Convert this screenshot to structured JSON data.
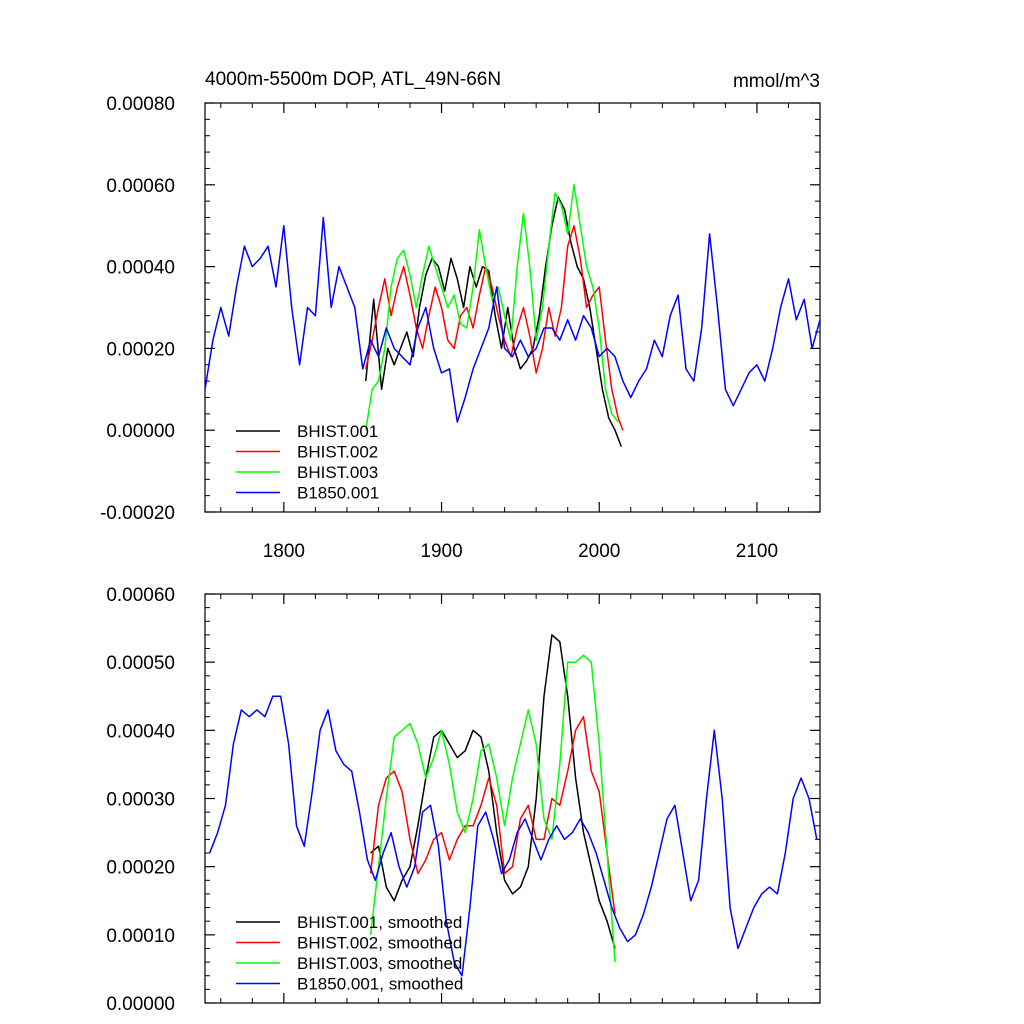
{
  "chart_data": [
    {
      "type": "line",
      "title": "4000m-5500m DOP, ATL_49N-66N",
      "units": "mmol/m^3",
      "xlim": [
        1750,
        2140
      ],
      "ylim": [
        -0.0002,
        0.0008
      ],
      "xticks": [
        1800,
        1900,
        2000,
        2100
      ],
      "xtick_labels": [
        "1800",
        "1900",
        "2000",
        "2100"
      ],
      "yticks": [
        -0.0002,
        0.0,
        0.0002,
        0.0004,
        0.0006,
        0.0008
      ],
      "ytick_labels": [
        "-0.00020",
        "0.00000",
        "0.00020",
        "0.00040",
        "0.00060",
        "0.00080"
      ],
      "legend_position": "bottom-left",
      "series": [
        {
          "name": "BHIST.001",
          "color": "#000000",
          "x": [
            1852,
            1857,
            1862,
            1866,
            1870,
            1874,
            1878,
            1882,
            1886,
            1890,
            1894,
            1898,
            1902,
            1906,
            1910,
            1914,
            1918,
            1922,
            1926,
            1930,
            1934,
            1938,
            1942,
            1946,
            1950,
            1954,
            1958,
            1962,
            1966,
            1970,
            1974,
            1978,
            1982,
            1986,
            1990,
            1994,
            1998,
            2002,
            2006,
            2010,
            2014
          ],
          "y": [
            0.00012,
            0.00032,
            0.0001,
            0.0002,
            0.00016,
            0.0002,
            0.00024,
            0.00018,
            0.0003,
            0.00038,
            0.00042,
            0.0004,
            0.00034,
            0.00042,
            0.00037,
            0.0003,
            0.0004,
            0.00035,
            0.0004,
            0.00039,
            0.00028,
            0.0002,
            0.0003,
            0.0002,
            0.00015,
            0.00017,
            0.0002,
            0.00028,
            0.0004,
            0.0005,
            0.00057,
            0.00054,
            0.00046,
            0.0004,
            0.00037,
            0.0003,
            0.0002,
            0.0001,
            3e-05,
            0.0,
            -4e-05
          ]
        },
        {
          "name": "BHIST.002",
          "color": "#ff0000",
          "x": [
            1852,
            1856,
            1860,
            1864,
            1868,
            1872,
            1876,
            1880,
            1884,
            1888,
            1892,
            1896,
            1900,
            1904,
            1908,
            1912,
            1916,
            1920,
            1924,
            1928,
            1932,
            1936,
            1940,
            1944,
            1948,
            1952,
            1956,
            1960,
            1964,
            1968,
            1972,
            1976,
            1980,
            1984,
            1988,
            1992,
            1996,
            2000,
            2004,
            2008,
            2012,
            2015
          ],
          "y": [
            0.00015,
            0.00022,
            0.0003,
            0.00037,
            0.00028,
            0.00035,
            0.0004,
            0.00033,
            0.00025,
            0.0002,
            0.00028,
            0.00035,
            0.0003,
            0.00022,
            0.0002,
            0.00028,
            0.0003,
            0.00025,
            0.00033,
            0.0004,
            0.00035,
            0.00028,
            0.00022,
            0.00018,
            0.00025,
            0.0003,
            0.00023,
            0.00014,
            0.0002,
            0.0003,
            0.00023,
            0.0003,
            0.00045,
            0.0005,
            0.00042,
            0.0003,
            0.00033,
            0.00035,
            0.00022,
            0.0001,
            3e-05,
            0.0
          ]
        },
        {
          "name": "BHIST.003",
          "color": "#00ff00",
          "x": [
            1852,
            1856,
            1860,
            1864,
            1868,
            1872,
            1876,
            1880,
            1884,
            1888,
            1892,
            1896,
            1900,
            1904,
            1908,
            1912,
            1916,
            1920,
            1924,
            1928,
            1932,
            1936,
            1940,
            1944,
            1948,
            1952,
            1956,
            1960,
            1964,
            1968,
            1972,
            1976,
            1980,
            1984,
            1988,
            1992,
            1996,
            2000,
            2004,
            2008,
            2012
          ],
          "y": [
            0.0,
            0.0001,
            0.00012,
            0.0002,
            0.00035,
            0.00042,
            0.00044,
            0.00038,
            0.0003,
            0.00038,
            0.00045,
            0.0004,
            0.00035,
            0.0003,
            0.00033,
            0.00026,
            0.00025,
            0.00035,
            0.00049,
            0.0004,
            0.00032,
            0.00035,
            0.00028,
            0.00022,
            0.0004,
            0.00053,
            0.0004,
            0.00022,
            0.0003,
            0.00045,
            0.00058,
            0.00055,
            0.00048,
            0.0006,
            0.0005,
            0.0004,
            0.00035,
            0.00025,
            0.0001,
            4e-05,
            2e-05
          ]
        },
        {
          "name": "B1850.001",
          "color": "#0000ff",
          "x": [
            1750,
            1755,
            1760,
            1765,
            1770,
            1775,
            1780,
            1785,
            1790,
            1795,
            1800,
            1805,
            1810,
            1815,
            1820,
            1825,
            1830,
            1835,
            1840,
            1845,
            1850,
            1855,
            1860,
            1865,
            1870,
            1875,
            1880,
            1885,
            1890,
            1895,
            1900,
            1905,
            1910,
            1915,
            1920,
            1925,
            1930,
            1935,
            1940,
            1945,
            1950,
            1955,
            1960,
            1965,
            1970,
            1975,
            1980,
            1985,
            1990,
            1995,
            2000,
            2005,
            2010,
            2015,
            2020,
            2025,
            2030,
            2035,
            2040,
            2045,
            2050,
            2055,
            2060,
            2065,
            2070,
            2075,
            2080,
            2085,
            2090,
            2095,
            2100,
            2105,
            2110,
            2115,
            2120,
            2125,
            2130,
            2135,
            2140
          ],
          "y": [
            0.0001,
            0.00022,
            0.0003,
            0.00023,
            0.00035,
            0.00045,
            0.0004,
            0.00042,
            0.00045,
            0.00035,
            0.0005,
            0.0003,
            0.00016,
            0.0003,
            0.00028,
            0.00052,
            0.0003,
            0.0004,
            0.00035,
            0.0003,
            0.00015,
            0.00022,
            0.00018,
            0.00025,
            0.0002,
            0.00018,
            0.00016,
            0.00025,
            0.0003,
            0.0002,
            0.00014,
            0.00015,
            2e-05,
            8e-05,
            0.00015,
            0.0002,
            0.00025,
            0.00035,
            0.0002,
            0.00018,
            0.00022,
            0.00018,
            0.0002,
            0.00025,
            0.00025,
            0.00022,
            0.00027,
            0.00022,
            0.00028,
            0.00025,
            0.00018,
            0.0002,
            0.00018,
            0.00012,
            8e-05,
            0.00012,
            0.00015,
            0.00022,
            0.00018,
            0.00028,
            0.00033,
            0.00015,
            0.00012,
            0.00025,
            0.00048,
            0.0003,
            0.0001,
            6e-05,
            0.0001,
            0.00014,
            0.00016,
            0.00012,
            0.0002,
            0.0003,
            0.00037,
            0.00027,
            0.00032,
            0.0002,
            0.00027
          ]
        }
      ]
    },
    {
      "type": "line",
      "xlim": [
        1750,
        2140
      ],
      "ylim": [
        0.0,
        0.0006
      ],
      "xticks": [
        1800,
        1900,
        2000,
        2100
      ],
      "yticks": [
        0.0,
        0.0001,
        0.0002,
        0.0003,
        0.0004,
        0.0005,
        0.0006
      ],
      "ytick_labels": [
        "0.00000",
        "0.00010",
        "0.00020",
        "0.00030",
        "0.00040",
        "0.00050",
        "0.00060"
      ],
      "legend_position": "bottom-left",
      "series": [
        {
          "name": "BHIST.001, smoothed",
          "color": "#000000",
          "x": [
            1855,
            1860,
            1865,
            1870,
            1875,
            1880,
            1885,
            1890,
            1895,
            1900,
            1905,
            1910,
            1915,
            1920,
            1925,
            1930,
            1935,
            1940,
            1945,
            1950,
            1955,
            1960,
            1965,
            1970,
            1975,
            1980,
            1985,
            1990,
            1995,
            2000,
            2005,
            2010
          ],
          "y": [
            0.00022,
            0.00023,
            0.00017,
            0.00015,
            0.00018,
            0.0002,
            0.00026,
            0.00033,
            0.00039,
            0.0004,
            0.00038,
            0.00036,
            0.00037,
            0.0004,
            0.00039,
            0.00034,
            0.00025,
            0.00018,
            0.00016,
            0.00017,
            0.0002,
            0.0003,
            0.00045,
            0.00054,
            0.00053,
            0.00045,
            0.00033,
            0.00025,
            0.0002,
            0.00015,
            0.00012,
            8e-05
          ]
        },
        {
          "name": "BHIST.002, smoothed",
          "color": "#ff0000",
          "x": [
            1855,
            1860,
            1865,
            1870,
            1875,
            1880,
            1885,
            1890,
            1895,
            1900,
            1905,
            1910,
            1915,
            1920,
            1925,
            1930,
            1935,
            1940,
            1945,
            1950,
            1955,
            1960,
            1965,
            1970,
            1975,
            1980,
            1985,
            1990,
            1995,
            2000,
            2005,
            2010
          ],
          "y": [
            0.00019,
            0.00029,
            0.00033,
            0.00034,
            0.00031,
            0.00024,
            0.00019,
            0.00021,
            0.00024,
            0.00025,
            0.00021,
            0.00024,
            0.00026,
            0.00026,
            0.00029,
            0.00033,
            0.00029,
            0.00019,
            0.0002,
            0.00027,
            0.00029,
            0.00024,
            0.00024,
            0.0003,
            0.00029,
            0.00034,
            0.0004,
            0.00042,
            0.00034,
            0.00031,
            0.00022,
            0.00013
          ]
        },
        {
          "name": "BHIST.003, smoothed",
          "color": "#00ff00",
          "x": [
            1855,
            1860,
            1865,
            1870,
            1875,
            1880,
            1885,
            1890,
            1895,
            1900,
            1905,
            1910,
            1915,
            1920,
            1925,
            1930,
            1935,
            1940,
            1945,
            1950,
            1955,
            1960,
            1965,
            1970,
            1975,
            1980,
            1985,
            1990,
            1995,
            2000,
            2005,
            2010
          ],
          "y": [
            0.0001,
            0.0002,
            0.0003,
            0.00039,
            0.0004,
            0.00041,
            0.00038,
            0.00033,
            0.00036,
            0.0004,
            0.00035,
            0.00028,
            0.00025,
            0.0003,
            0.00037,
            0.00038,
            0.00033,
            0.00026,
            0.00033,
            0.00038,
            0.00043,
            0.00038,
            0.00027,
            0.00024,
            0.00035,
            0.0005,
            0.0005,
            0.00051,
            0.0005,
            0.00038,
            0.00022,
            6e-05
          ]
        },
        {
          "name": "B1850.001, smoothed",
          "color": "#0000ff",
          "x": [
            1753,
            1758,
            1763,
            1768,
            1773,
            1778,
            1783,
            1788,
            1793,
            1798,
            1803,
            1808,
            1813,
            1818,
            1823,
            1828,
            1833,
            1838,
            1843,
            1848,
            1853,
            1858,
            1863,
            1868,
            1873,
            1878,
            1883,
            1888,
            1893,
            1898,
            1903,
            1908,
            1913,
            1918,
            1923,
            1928,
            1933,
            1938,
            1943,
            1948,
            1953,
            1958,
            1963,
            1968,
            1973,
            1978,
            1983,
            1988,
            1993,
            1998,
            2003,
            2008,
            2013,
            2018,
            2023,
            2028,
            2033,
            2038,
            2043,
            2048,
            2053,
            2058,
            2063,
            2068,
            2073,
            2078,
            2083,
            2088,
            2093,
            2098,
            2103,
            2108,
            2113,
            2118,
            2123,
            2128,
            2133,
            2138
          ],
          "y": [
            0.00022,
            0.00025,
            0.00029,
            0.00038,
            0.00043,
            0.00042,
            0.00043,
            0.00042,
            0.00045,
            0.00045,
            0.00038,
            0.00026,
            0.00023,
            0.00031,
            0.0004,
            0.00043,
            0.00037,
            0.00035,
            0.00034,
            0.00028,
            0.00021,
            0.00018,
            0.00022,
            0.00025,
            0.0002,
            0.00017,
            0.0002,
            0.00028,
            0.00029,
            0.00023,
            0.00012,
            6e-05,
            4e-05,
            0.00014,
            0.00026,
            0.00028,
            0.00024,
            0.00019,
            0.00021,
            0.00025,
            0.00027,
            0.00024,
            0.00021,
            0.00024,
            0.00026,
            0.00024,
            0.00025,
            0.00027,
            0.00025,
            0.00022,
            0.00018,
            0.00014,
            0.00011,
            9e-05,
            0.0001,
            0.00013,
            0.00017,
            0.00022,
            0.00027,
            0.00029,
            0.00022,
            0.00015,
            0.00018,
            0.0003,
            0.0004,
            0.0003,
            0.00014,
            8e-05,
            0.00011,
            0.00014,
            0.00016,
            0.00017,
            0.00016,
            0.00022,
            0.0003,
            0.00033,
            0.0003,
            0.00024
          ]
        }
      ]
    }
  ]
}
